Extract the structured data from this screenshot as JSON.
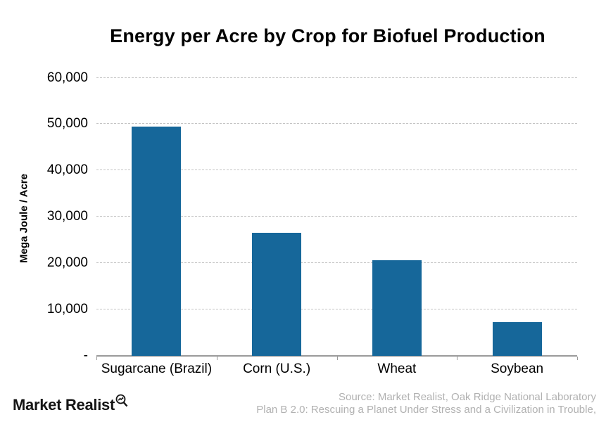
{
  "chart_data": {
    "type": "bar",
    "title": "Energy per Acre by Crop for Biofuel Production",
    "categories": [
      "Sugarcane (Brazil)",
      "Corn (U.S.)",
      "Wheat",
      "Soybean"
    ],
    "values": [
      49500,
      26500,
      20700,
      7300
    ],
    "xlabel": "",
    "ylabel": "Mega Joule / Acre",
    "ylim": [
      0,
      60000
    ],
    "ytick_interval": 10000,
    "yticks": [
      {
        "value": 0,
        "label": "-"
      },
      {
        "value": 10000,
        "label": "10,000"
      },
      {
        "value": 20000,
        "label": "20,000"
      },
      {
        "value": 30000,
        "label": "30,000"
      },
      {
        "value": 40000,
        "label": "40,000"
      },
      {
        "value": 50000,
        "label": "50,000"
      },
      {
        "value": 60000,
        "label": "60,000"
      }
    ],
    "grid": "horizontal-dashed",
    "legend_position": "none",
    "bar_color": "#16679A"
  },
  "footer": {
    "logo_text": "Market Realist",
    "logo_icon": "magnifier-trend-icon",
    "source_line1": "Source: Market Realist, Oak Ridge National Laboratory",
    "source_line2": "Plan B 2.0: Rescuing a Planet Under Stress and a Civilization in Trouble,"
  },
  "colors": {
    "bar": "#16679A",
    "gridline": "#c3c3c3",
    "axis": "#9a9a9a",
    "text": "#000000",
    "source_text": "#b1b1b1",
    "background": "#ffffff"
  }
}
